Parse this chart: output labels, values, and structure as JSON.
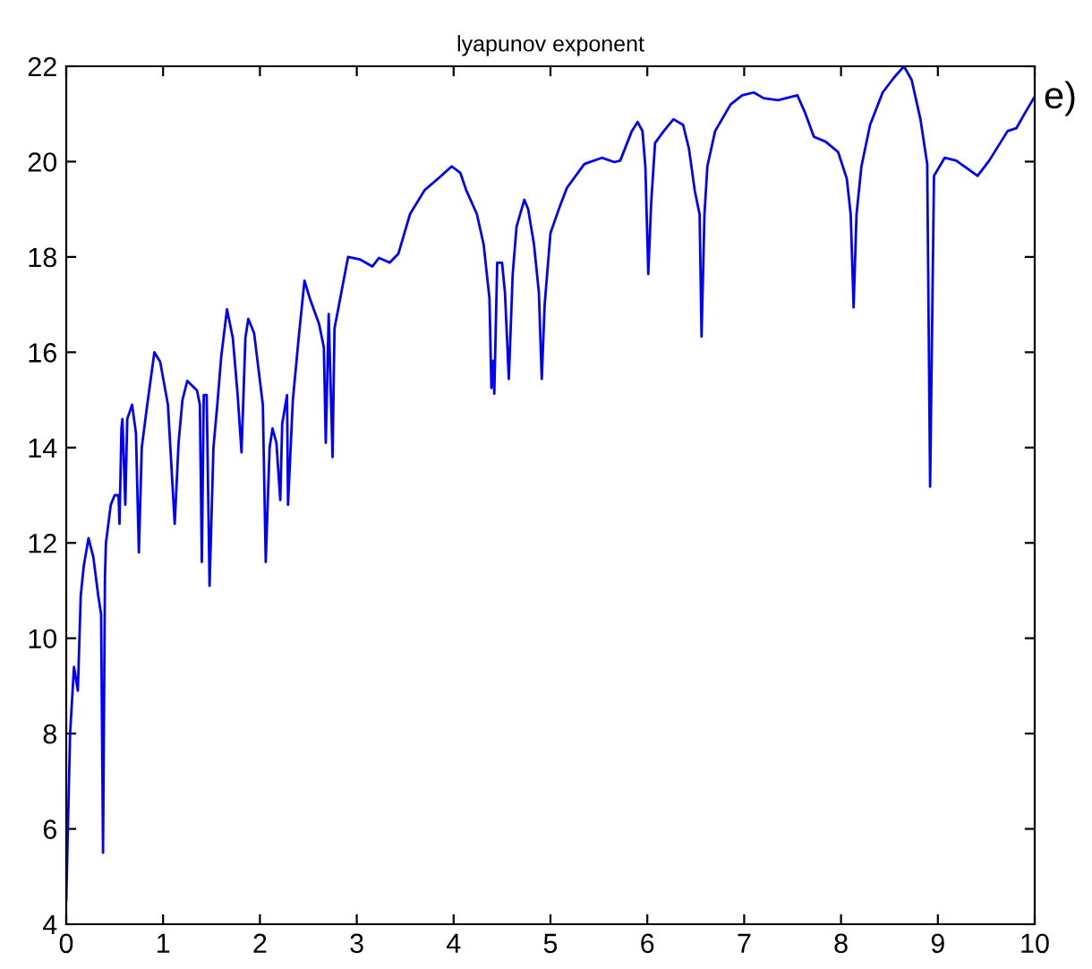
{
  "chart_data": {
    "type": "line",
    "title": "lyapunov exponent",
    "annotations": [
      "e)"
    ],
    "xlim": [
      0,
      10
    ],
    "ylim": [
      4,
      22
    ],
    "xticks": [
      0,
      1,
      2,
      3,
      4,
      5,
      6,
      7,
      8,
      9,
      10
    ],
    "yticks": [
      4,
      6,
      8,
      10,
      12,
      14,
      16,
      18,
      20,
      22
    ],
    "grid": false,
    "legend": false,
    "series": [
      {
        "color": "#0000ff",
        "x": [
          0,
          0.04,
          0.08,
          0.12,
          0.15,
          0.18,
          0.23,
          0.28,
          0.33,
          0.36,
          0.38,
          0.4,
          0.41,
          0.46,
          0.5,
          0.54,
          0.55,
          0.57,
          0.58,
          0.61,
          0.63,
          0.68,
          0.72,
          0.75,
          0.78,
          0.83,
          0.91,
          0.97,
          1.05,
          1.12,
          1.16,
          1.2,
          1.25,
          1.35,
          1.38,
          1.4,
          1.42,
          1.45,
          1.48,
          1.52,
          1.56,
          1.6,
          1.66,
          1.72,
          1.77,
          1.81,
          1.85,
          1.88,
          1.94,
          2.03,
          2.06,
          2.1,
          2.13,
          2.17,
          2.21,
          2.23,
          2.28,
          2.29,
          2.34,
          2.4,
          2.46,
          2.52,
          2.61,
          2.66,
          2.68,
          2.71,
          2.75,
          2.77,
          2.91,
          3.03,
          3.16,
          3.23,
          3.34,
          3.43,
          3.55,
          3.7,
          3.86,
          3.98,
          4.07,
          4.13,
          4.24,
          4.31,
          4.37,
          4.39,
          4.41,
          4.42,
          4.45,
          4.5,
          4.53,
          4.57,
          4.61,
          4.65,
          4.73,
          4.77,
          4.83,
          4.88,
          4.91,
          4.94,
          5.0,
          5.1,
          5.17,
          5.35,
          5.53,
          5.66,
          5.72,
          5.84,
          5.9,
          5.95,
          5.98,
          6.01,
          6.04,
          6.08,
          6.17,
          6.27,
          6.37,
          6.43,
          6.49,
          6.54,
          6.56,
          6.59,
          6.62,
          6.7,
          6.86,
          6.98,
          7.1,
          7.2,
          7.35,
          7.55,
          7.63,
          7.72,
          7.84,
          7.97,
          8.06,
          8.1,
          8.13,
          8.16,
          8.21,
          8.3,
          8.43,
          8.55,
          8.65,
          8.73,
          8.82,
          8.89,
          8.92,
          8.96,
          9.07,
          9.19,
          9.32,
          9.41,
          9.53,
          9.72,
          9.81,
          9.9,
          9.99
        ],
        "values": [
          4.5,
          8.0,
          9.4,
          8.9,
          10.9,
          11.5,
          12.1,
          11.7,
          10.9,
          10.5,
          5.5,
          11.3,
          12.0,
          12.8,
          13.0,
          13.0,
          12.4,
          14.4,
          14.6,
          12.8,
          14.6,
          14.9,
          14.3,
          11.8,
          14.0,
          14.8,
          16.0,
          15.8,
          14.9,
          12.4,
          14.1,
          15.0,
          15.4,
          15.2,
          14.9,
          11.6,
          15.1,
          15.1,
          11.1,
          14.0,
          14.9,
          15.9,
          16.9,
          16.3,
          15.1,
          13.9,
          16.3,
          16.7,
          16.4,
          14.9,
          11.6,
          14.0,
          14.4,
          14.1,
          12.9,
          14.5,
          15.1,
          12.8,
          15.0,
          16.3,
          17.5,
          17.1,
          16.6,
          16.1,
          14.1,
          16.8,
          13.8,
          16.5,
          18.0,
          17.95,
          17.8,
          17.98,
          17.88,
          18.07,
          18.9,
          19.4,
          19.68,
          19.9,
          19.76,
          19.4,
          18.9,
          18.26,
          17.13,
          15.25,
          15.82,
          15.13,
          17.88,
          17.88,
          17.26,
          15.44,
          17.64,
          18.64,
          19.2,
          19.0,
          18.26,
          17.26,
          15.44,
          17.0,
          18.5,
          19.08,
          19.45,
          19.95,
          20.08,
          19.99,
          20.02,
          20.64,
          20.83,
          20.64,
          19.89,
          17.64,
          19.14,
          20.39,
          20.64,
          20.89,
          20.77,
          20.27,
          19.39,
          18.89,
          16.33,
          18.89,
          19.9,
          20.64,
          21.2,
          21.39,
          21.45,
          21.33,
          21.29,
          21.39,
          21.02,
          20.52,
          20.42,
          20.2,
          19.64,
          18.89,
          16.94,
          18.89,
          19.89,
          20.77,
          21.45,
          21.77,
          22.0,
          21.71,
          20.89,
          19.95,
          13.18,
          19.7,
          20.08,
          20.02,
          19.83,
          19.7,
          20.02,
          20.64,
          20.7,
          21.02,
          21.33
        ]
      }
    ]
  }
}
